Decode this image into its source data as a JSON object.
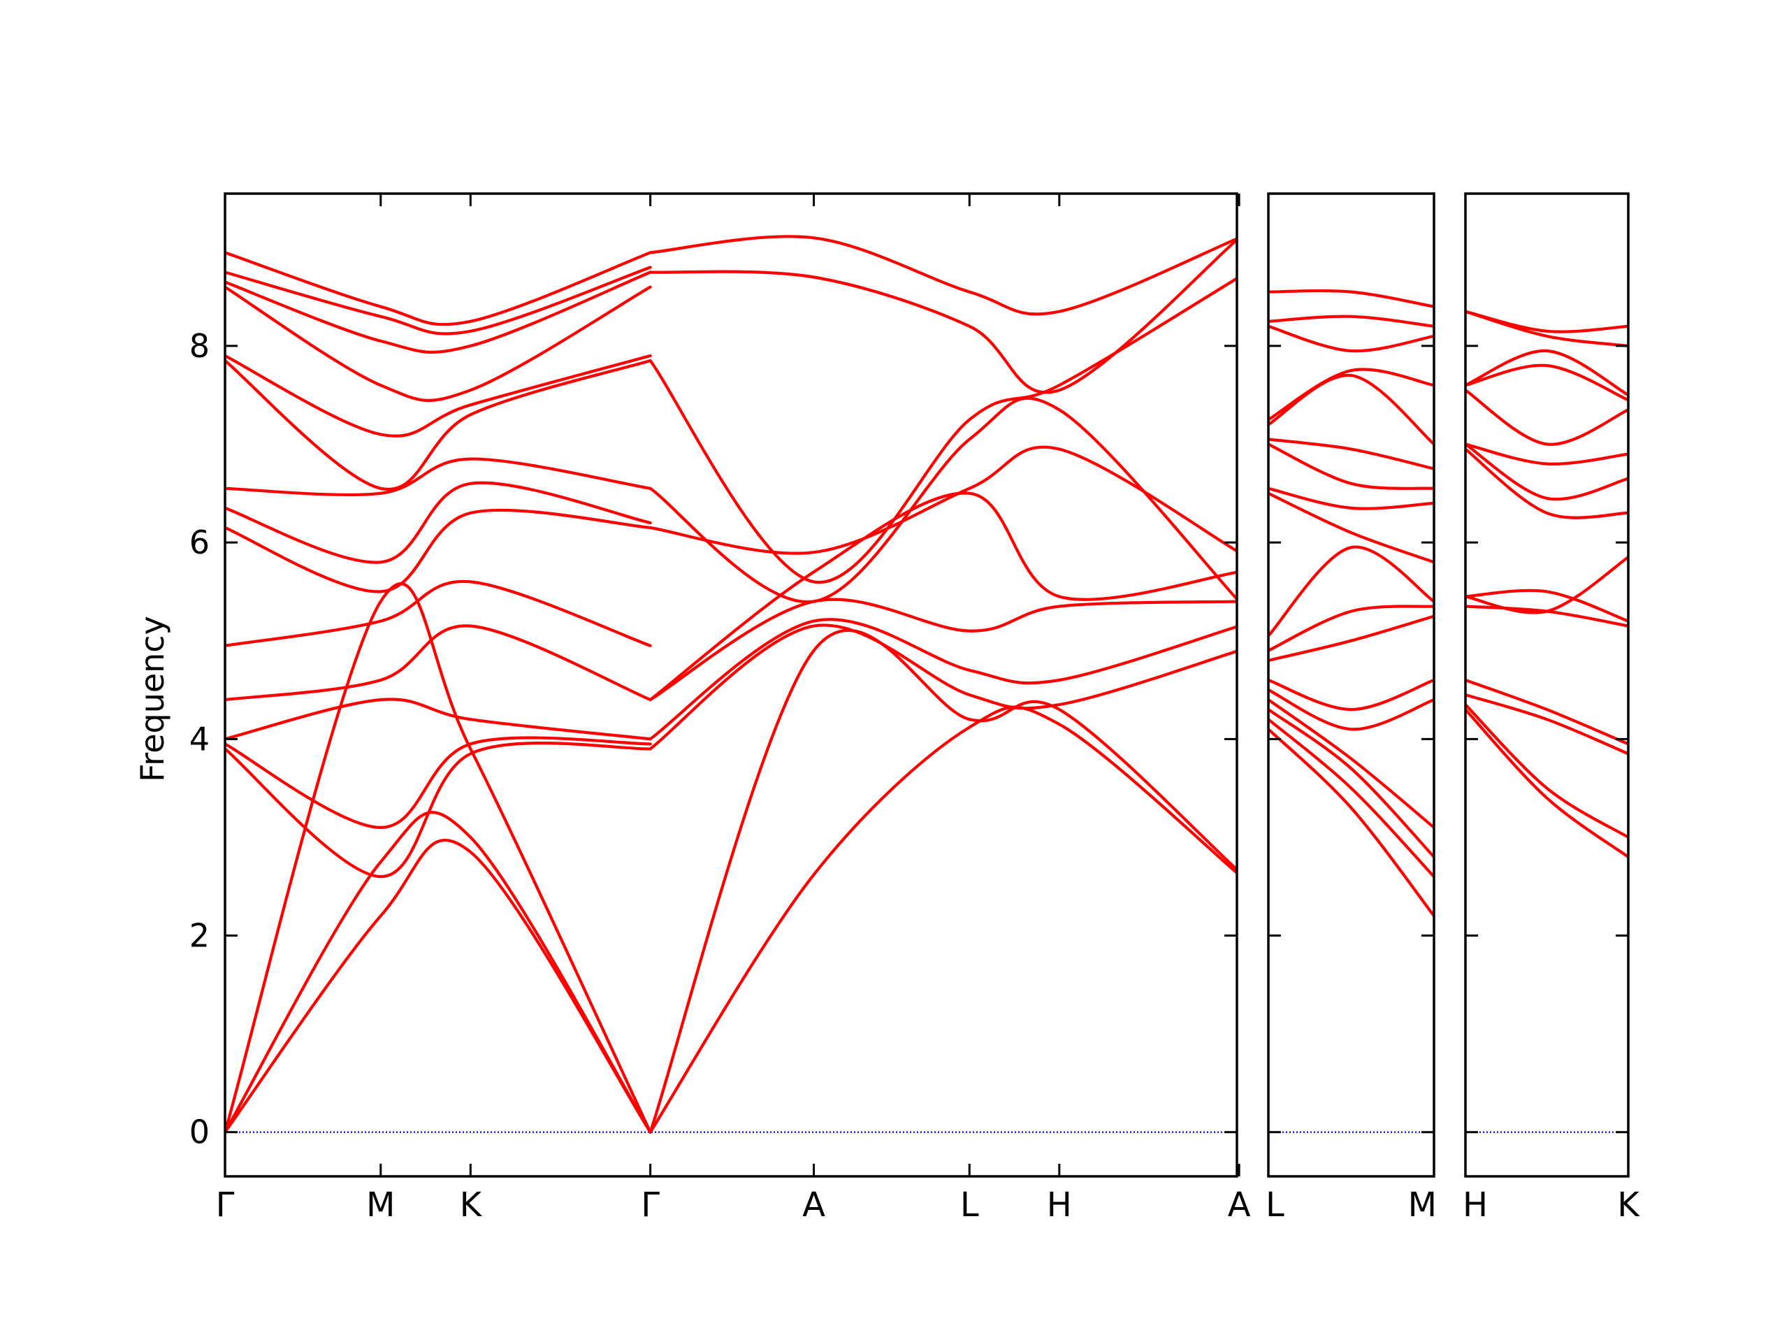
{
  "chart_data": {
    "type": "line",
    "title": "",
    "ylabel": "Frequency",
    "xlabel": "",
    "ylim": [
      -0.45,
      9.55
    ],
    "yticks": [
      0,
      2,
      4,
      6,
      8
    ],
    "ytick_labels": [
      "0",
      "2",
      "4",
      "6",
      "8"
    ],
    "grid": false,
    "legend": "none",
    "colors": {
      "bands": "#ff0000",
      "zero_line": "#0000ff",
      "axes": "#000000"
    },
    "panels": [
      {
        "name": "panel-main",
        "x_range": [
          0,
          6.5
        ],
        "ticks": [
          {
            "x": 0,
            "label": "Γ"
          },
          {
            "x": 1,
            "label": "M"
          },
          {
            "x": 1.577,
            "label": "K"
          },
          {
            "x": 2.732,
            "label": "Γ"
          },
          {
            "x": 3.782,
            "label": "A"
          },
          {
            "x": 4.782,
            "label": "L"
          },
          {
            "x": 5.359,
            "label": "H"
          },
          {
            "x": 6.514,
            "label": "A"
          }
        ],
        "bands": [
          {
            "x": [
              0,
              1,
              1.577,
              2.732
            ],
            "y": [
              0,
              2.2,
              2.85,
              0
            ]
          },
          {
            "x": [
              0,
              1,
              1.577,
              2.732
            ],
            "y": [
              0,
              2.75,
              3.0,
              0
            ]
          },
          {
            "x": [
              0,
              1,
              1.577,
              2.732
            ],
            "y": [
              0,
              5.4,
              3.9,
              0
            ]
          },
          {
            "x": [
              0,
              1,
              1.577,
              2.732
            ],
            "y": [
              3.9,
              2.6,
              3.85,
              3.9
            ]
          },
          {
            "x": [
              0,
              1,
              1.577,
              2.732
            ],
            "y": [
              3.95,
              3.1,
              3.95,
              3.95
            ]
          },
          {
            "x": [
              0,
              1,
              1.577,
              2.732
            ],
            "y": [
              4.0,
              4.4,
              4.2,
              4.0
            ]
          },
          {
            "x": [
              0,
              1,
              1.577,
              2.732
            ],
            "y": [
              4.4,
              4.6,
              5.15,
              4.4
            ]
          },
          {
            "x": [
              0,
              1,
              1.577,
              2.732
            ],
            "y": [
              4.95,
              5.2,
              5.6,
              4.95
            ]
          },
          {
            "x": [
              0,
              1,
              1.577,
              2.732
            ],
            "y": [
              6.15,
              5.5,
              6.3,
              6.15
            ]
          },
          {
            "x": [
              0,
              1,
              1.577,
              2.732
            ],
            "y": [
              6.35,
              5.8,
              6.6,
              6.2
            ]
          },
          {
            "x": [
              0,
              1,
              1.577,
              2.732
            ],
            "y": [
              6.55,
              6.5,
              6.85,
              6.55
            ]
          },
          {
            "x": [
              0,
              1,
              1.577,
              2.732
            ],
            "y": [
              7.85,
              6.55,
              7.3,
              7.85
            ]
          },
          {
            "x": [
              0,
              1,
              1.577,
              2.732
            ],
            "y": [
              7.9,
              7.1,
              7.4,
              7.9
            ]
          },
          {
            "x": [
              0,
              1,
              1.577,
              2.732
            ],
            "y": [
              8.6,
              7.6,
              7.55,
              8.6
            ]
          },
          {
            "x": [
              0,
              1,
              1.577,
              2.732
            ],
            "y": [
              8.65,
              8.05,
              8.0,
              8.75
            ]
          },
          {
            "x": [
              0,
              1,
              1.577,
              2.732
            ],
            "y": [
              8.75,
              8.3,
              8.15,
              8.8
            ]
          },
          {
            "x": [
              0,
              1,
              1.577,
              2.732
            ],
            "y": [
              8.95,
              8.4,
              8.25,
              8.95
            ]
          },
          {
            "x": [
              2.732,
              3.782,
              4.782,
              5.359,
              6.514
            ],
            "y": [
              0,
              2.62,
              4.12,
              4.15,
              2.62
            ]
          },
          {
            "x": [
              2.732,
              3.782,
              4.782,
              5.359,
              6.514
            ],
            "y": [
              0,
              4.9,
              4.2,
              4.3,
              2.65
            ]
          },
          {
            "x": [
              2.732,
              3.782,
              4.782,
              5.359,
              6.514
            ],
            "y": [
              3.9,
              5.15,
              4.45,
              4.35,
              4.9
            ]
          },
          {
            "x": [
              2.732,
              3.782,
              4.782,
              5.359,
              6.514
            ],
            "y": [
              4.0,
              5.2,
              4.7,
              4.6,
              5.15
            ]
          },
          {
            "x": [
              2.732,
              3.782,
              4.782,
              5.359,
              6.514
            ],
            "y": [
              4.4,
              5.4,
              5.1,
              5.35,
              5.4
            ]
          },
          {
            "x": [
              2.732,
              3.782,
              4.782,
              5.359,
              6.514
            ],
            "y": [
              4.4,
              5.7,
              6.5,
              5.45,
              5.7
            ]
          },
          {
            "x": [
              2.732,
              3.782,
              4.782,
              5.359,
              6.514
            ],
            "y": [
              6.15,
              5.9,
              6.55,
              6.95,
              5.9
            ]
          },
          {
            "x": [
              2.732,
              3.782,
              4.782,
              5.359,
              6.514
            ],
            "y": [
              6.55,
              5.4,
              7.05,
              7.35,
              5.4
            ]
          },
          {
            "x": [
              2.732,
              3.782,
              4.782,
              5.359,
              6.514
            ],
            "y": [
              7.85,
              5.6,
              7.25,
              7.6,
              8.7
            ]
          },
          {
            "x": [
              2.732,
              3.782,
              4.782,
              5.359,
              6.514
            ],
            "y": [
              8.75,
              8.7,
              8.2,
              7.55,
              9.1
            ]
          },
          {
            "x": [
              2.732,
              3.782,
              4.782,
              5.359,
              6.514
            ],
            "y": [
              8.95,
              9.1,
              8.55,
              8.35,
              9.1
            ]
          }
        ]
      },
      {
        "name": "panel-lm",
        "x_range": [
          0,
          1
        ],
        "ticks": [
          {
            "x": 0,
            "label": "L"
          },
          {
            "x": 1,
            "label": "M"
          }
        ],
        "bands": [
          {
            "x": [
              0,
              0.5,
              1
            ],
            "y": [
              4.1,
              3.3,
              2.2
            ]
          },
          {
            "x": [
              0,
              0.5,
              1
            ],
            "y": [
              4.2,
              3.5,
              2.6
            ]
          },
          {
            "x": [
              0,
              0.5,
              1
            ],
            "y": [
              4.3,
              3.7,
              2.8
            ]
          },
          {
            "x": [
              0,
              0.5,
              1
            ],
            "y": [
              4.4,
              3.8,
              3.1
            ]
          },
          {
            "x": [
              0,
              0.5,
              1
            ],
            "y": [
              4.5,
              4.1,
              4.4
            ]
          },
          {
            "x": [
              0,
              0.5,
              1
            ],
            "y": [
              4.6,
              4.3,
              4.6
            ]
          },
          {
            "x": [
              0,
              0.5,
              1
            ],
            "y": [
              4.8,
              5.0,
              5.25
            ]
          },
          {
            "x": [
              0,
              0.5,
              1
            ],
            "y": [
              4.9,
              5.3,
              5.35
            ]
          },
          {
            "x": [
              0,
              0.5,
              1
            ],
            "y": [
              5.05,
              5.95,
              5.4
            ]
          },
          {
            "x": [
              0,
              0.5,
              1
            ],
            "y": [
              6.5,
              6.1,
              5.8
            ]
          },
          {
            "x": [
              0,
              0.5,
              1
            ],
            "y": [
              6.55,
              6.35,
              6.4
            ]
          },
          {
            "x": [
              0,
              0.5,
              1
            ],
            "y": [
              7.0,
              6.6,
              6.55
            ]
          },
          {
            "x": [
              0,
              0.5,
              1
            ],
            "y": [
              7.05,
              6.95,
              6.75
            ]
          },
          {
            "x": [
              0,
              0.5,
              1
            ],
            "y": [
              7.2,
              7.7,
              7.0
            ]
          },
          {
            "x": [
              0,
              0.5,
              1
            ],
            "y": [
              7.25,
              7.75,
              7.6
            ]
          },
          {
            "x": [
              0,
              0.5,
              1
            ],
            "y": [
              8.2,
              7.95,
              8.1
            ]
          },
          {
            "x": [
              0,
              0.5,
              1
            ],
            "y": [
              8.25,
              8.3,
              8.2
            ]
          },
          {
            "x": [
              0,
              0.5,
              1
            ],
            "y": [
              8.55,
              8.55,
              8.4
            ]
          }
        ]
      },
      {
        "name": "panel-hk",
        "x_range": [
          0,
          1
        ],
        "ticks": [
          {
            "x": 0,
            "label": "H"
          },
          {
            "x": 1,
            "label": "K"
          }
        ],
        "bands": [
          {
            "x": [
              0,
              0.5,
              1
            ],
            "y": [
              4.3,
              3.4,
              2.8
            ]
          },
          {
            "x": [
              0,
              0.5,
              1
            ],
            "y": [
              4.35,
              3.5,
              3.0
            ]
          },
          {
            "x": [
              0,
              0.5,
              1
            ],
            "y": [
              4.45,
              4.2,
              3.85
            ]
          },
          {
            "x": [
              0,
              0.5,
              1
            ],
            "y": [
              4.6,
              4.3,
              3.95
            ]
          },
          {
            "x": [
              0,
              0.5,
              1
            ],
            "y": [
              5.35,
              5.3,
              5.15
            ]
          },
          {
            "x": [
              0,
              0.5,
              1
            ],
            "y": [
              5.45,
              5.5,
              5.2
            ]
          },
          {
            "x": [
              0,
              0.5,
              1
            ],
            "y": [
              5.45,
              5.3,
              5.85
            ]
          },
          {
            "x": [
              0,
              0.5,
              1
            ],
            "y": [
              6.95,
              6.3,
              6.3
            ]
          },
          {
            "x": [
              0,
              0.5,
              1
            ],
            "y": [
              7.0,
              6.45,
              6.65
            ]
          },
          {
            "x": [
              0,
              0.5,
              1
            ],
            "y": [
              7.0,
              6.8,
              6.9
            ]
          },
          {
            "x": [
              0,
              0.5,
              1
            ],
            "y": [
              7.55,
              7.0,
              7.35
            ]
          },
          {
            "x": [
              0,
              0.5,
              1
            ],
            "y": [
              7.6,
              7.8,
              7.45
            ]
          },
          {
            "x": [
              0,
              0.5,
              1
            ],
            "y": [
              7.6,
              7.95,
              7.5
            ]
          },
          {
            "x": [
              0,
              0.5,
              1
            ],
            "y": [
              8.35,
              8.1,
              8.0
            ]
          },
          {
            "x": [
              0,
              0.5,
              1
            ],
            "y": [
              8.35,
              8.15,
              8.2
            ]
          }
        ]
      }
    ]
  }
}
